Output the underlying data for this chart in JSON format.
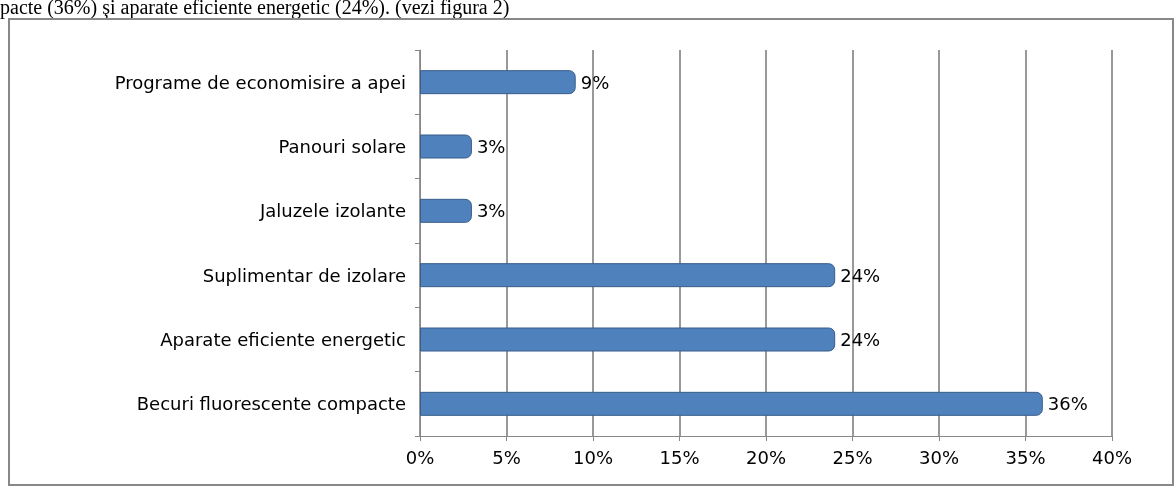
{
  "chart_data": {
    "type": "bar",
    "orientation": "horizontal",
    "categories": [
      "Programe de economisire a apei",
      "Panouri solare",
      "Jaluzele izolante",
      "Suplimentar de izolare",
      "Aparate eficiente energetic",
      "Becuri fluorescente compacte"
    ],
    "values": [
      9,
      3,
      3,
      24,
      24,
      36
    ],
    "value_labels": [
      "9%",
      "3%",
      "3%",
      "24%",
      "24%",
      "36%"
    ],
    "color": "#4f81bd",
    "xlim": [
      0,
      40
    ],
    "xticks": [
      {
        "value": 0,
        "label": "0%"
      },
      {
        "value": 5,
        "label": "5%"
      },
      {
        "value": 10,
        "label": "10%"
      },
      {
        "value": 15,
        "label": "15%"
      },
      {
        "value": 20,
        "label": "20%"
      },
      {
        "value": 25,
        "label": "25%"
      },
      {
        "value": 30,
        "label": "30%"
      },
      {
        "value": 35,
        "label": "35%"
      },
      {
        "value": 40,
        "label": "40%"
      }
    ],
    "grid": "x",
    "annotations": [
      "pacte (36%) şi aparate eficiente energetic (24%). (vezi figura 2)"
    ]
  }
}
